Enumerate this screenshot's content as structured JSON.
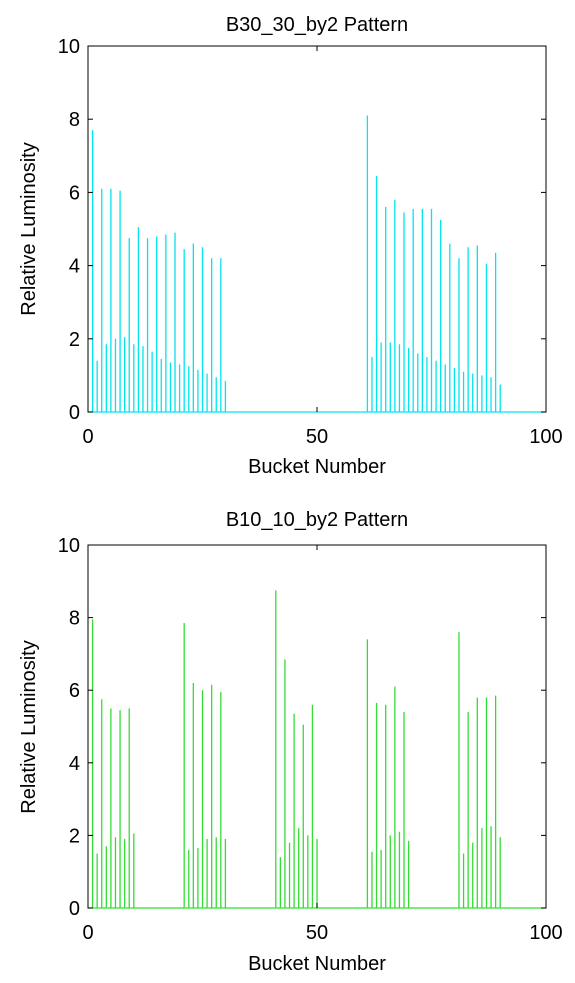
{
  "chart_data": [
    {
      "type": "bar",
      "style": "stem",
      "title": "B30_30_by2 Pattern",
      "xlabel": "Bucket Number",
      "ylabel": "Relative Luminosity",
      "xlim": [
        0,
        100
      ],
      "ylim": [
        0,
        10
      ],
      "xticks": [
        0,
        50,
        100
      ],
      "yticks": [
        0,
        2,
        4,
        6,
        8,
        10
      ],
      "grid": false,
      "color": "#00e5ee",
      "x": [
        1,
        2,
        3,
        4,
        5,
        6,
        7,
        8,
        9,
        10,
        11,
        12,
        13,
        14,
        15,
        16,
        17,
        18,
        19,
        20,
        21,
        22,
        23,
        24,
        25,
        26,
        27,
        28,
        29,
        30,
        61,
        62,
        63,
        64,
        65,
        66,
        67,
        68,
        69,
        70,
        71,
        72,
        73,
        74,
        75,
        76,
        77,
        78,
        79,
        80,
        81,
        82,
        83,
        84,
        85,
        86,
        87,
        88,
        89,
        90
      ],
      "values": [
        7.7,
        1.4,
        6.1,
        1.85,
        6.1,
        2.0,
        6.05,
        2.05,
        4.75,
        1.85,
        5.05,
        1.8,
        4.75,
        1.65,
        4.8,
        1.45,
        4.85,
        1.35,
        4.9,
        1.3,
        4.45,
        1.25,
        4.6,
        1.15,
        4.5,
        1.05,
        4.2,
        0.95,
        4.2,
        0.85,
        8.1,
        1.5,
        6.45,
        1.9,
        5.6,
        1.9,
        5.8,
        1.85,
        5.45,
        1.75,
        5.55,
        1.6,
        5.55,
        1.5,
        5.55,
        1.4,
        5.25,
        1.3,
        4.6,
        1.2,
        4.2,
        1.1,
        4.5,
        1.05,
        4.55,
        1.0,
        4.05,
        0.95,
        4.35,
        0.75
      ]
    },
    {
      "type": "bar",
      "style": "stem",
      "title": "B10_10_by2 Pattern",
      "xlabel": "Bucket Number",
      "ylabel": "Relative Luminosity",
      "xlim": [
        0,
        100
      ],
      "ylim": [
        0,
        10
      ],
      "xticks": [
        0,
        50,
        100
      ],
      "yticks": [
        0,
        2,
        4,
        6,
        8,
        10
      ],
      "grid": false,
      "color": "#33dd33",
      "x": [
        1,
        2,
        3,
        4,
        5,
        6,
        7,
        8,
        9,
        10,
        21,
        22,
        23,
        24,
        25,
        26,
        27,
        28,
        29,
        30,
        41,
        42,
        43,
        44,
        45,
        46,
        47,
        48,
        49,
        50,
        61,
        62,
        63,
        64,
        65,
        66,
        67,
        68,
        69,
        70,
        81,
        82,
        83,
        84,
        85,
        86,
        87,
        88,
        89,
        90
      ],
      "values": [
        7.95,
        1.5,
        5.75,
        1.7,
        5.5,
        1.95,
        5.45,
        1.9,
        5.5,
        2.05,
        7.85,
        1.6,
        6.2,
        1.65,
        6.0,
        1.9,
        6.15,
        1.95,
        5.95,
        1.9,
        8.75,
        1.4,
        6.85,
        1.8,
        5.35,
        2.2,
        5.05,
        2.0,
        5.6,
        1.9,
        7.4,
        1.55,
        5.65,
        1.6,
        5.6,
        2.0,
        6.1,
        2.1,
        5.4,
        1.85,
        7.6,
        1.5,
        5.4,
        1.8,
        5.8,
        2.2,
        5.8,
        2.25,
        5.85,
        1.95
      ]
    }
  ]
}
